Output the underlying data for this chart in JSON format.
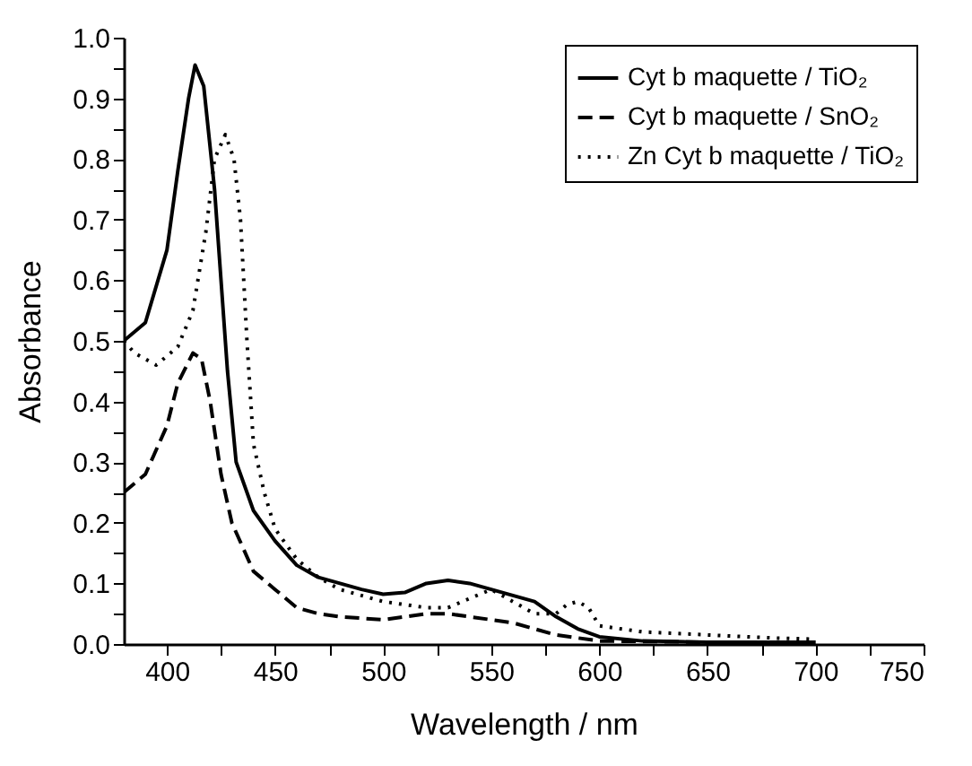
{
  "chart_data": {
    "type": "line",
    "xlabel": "Wavelength / nm",
    "ylabel": "Absorbance",
    "xlim": [
      380,
      750
    ],
    "ylim": [
      0,
      1
    ],
    "xticks": [
      400,
      {
        "value": 425,
        "label": null
      },
      450,
      {
        "value": 475,
        "label": null
      },
      500,
      {
        "value": 525,
        "label": null
      },
      550,
      {
        "value": 575,
        "label": null
      },
      600,
      {
        "value": 625,
        "label": null
      },
      650,
      {
        "value": 675,
        "label": null
      },
      700,
      {
        "value": 725,
        "label": null
      },
      750
    ],
    "yticks": [
      {
        "value": 0,
        "label": "0.0"
      },
      {
        "value": 0.05,
        "label": null
      },
      0.1,
      {
        "value": 0.15,
        "label": null
      },
      0.2,
      {
        "value": 0.25,
        "label": null
      },
      0.3,
      {
        "value": 0.35,
        "label": null
      },
      0.4,
      {
        "value": 0.45,
        "label": null
      },
      0.5,
      {
        "value": 0.55,
        "label": null
      },
      0.6,
      {
        "value": 0.65,
        "label": null
      },
      0.7,
      {
        "value": 0.75,
        "label": null
      },
      0.8,
      {
        "value": 0.85,
        "label": null
      },
      0.9,
      {
        "value": 0.95,
        "label": null
      },
      {
        "value": 1,
        "label": "1.0"
      }
    ],
    "grid": false,
    "legend": "top right",
    "marker": "none",
    "series": [
      {
        "name": "Cyt b maquette / TiO₂",
        "color": "#000000",
        "line_style": "solid",
        "x": [
          380,
          390,
          400,
          405,
          410,
          413,
          417,
          422,
          428,
          432,
          440,
          450,
          460,
          470,
          480,
          490,
          500,
          510,
          520,
          530,
          540,
          550,
          560,
          570,
          580,
          590,
          600,
          620,
          650,
          700
        ],
        "values": [
          0.5,
          0.53,
          0.65,
          0.78,
          0.9,
          0.955,
          0.92,
          0.75,
          0.45,
          0.3,
          0.22,
          0.17,
          0.13,
          0.11,
          0.1,
          0.09,
          0.082,
          0.085,
          0.1,
          0.105,
          0.1,
          0.09,
          0.08,
          0.07,
          0.045,
          0.025,
          0.012,
          0.005,
          0.003,
          0.003
        ]
      },
      {
        "name": "Cyt b maquette / SnO₂",
        "color": "#000000",
        "line_style": "dashed",
        "x": [
          380,
          390,
          400,
          405,
          412,
          416,
          420,
          425,
          430,
          440,
          450,
          460,
          470,
          480,
          500,
          510,
          520,
          530,
          540,
          550,
          560,
          570,
          580,
          600,
          650,
          700
        ],
        "values": [
          0.25,
          0.28,
          0.36,
          0.43,
          0.48,
          0.47,
          0.4,
          0.28,
          0.2,
          0.12,
          0.09,
          0.06,
          0.05,
          0.045,
          0.04,
          0.045,
          0.05,
          0.05,
          0.045,
          0.04,
          0.035,
          0.025,
          0.015,
          0.005,
          0.003,
          0.003
        ]
      },
      {
        "name": "Zn Cyt b maquette / TiO₂",
        "color": "#000000",
        "line_style": "dotted",
        "x": [
          380,
          385,
          395,
          405,
          412,
          418,
          422,
          427,
          431,
          434,
          437,
          440,
          445,
          450,
          460,
          470,
          480,
          500,
          520,
          530,
          540,
          550,
          560,
          570,
          580,
          585,
          590,
          595,
          600,
          620,
          650,
          680,
          700
        ],
        "values": [
          0.5,
          0.48,
          0.46,
          0.49,
          0.55,
          0.68,
          0.8,
          0.84,
          0.8,
          0.7,
          0.5,
          0.33,
          0.25,
          0.19,
          0.14,
          0.11,
          0.09,
          0.07,
          0.06,
          0.06,
          0.075,
          0.09,
          0.07,
          0.05,
          0.05,
          0.065,
          0.07,
          0.06,
          0.03,
          0.02,
          0.015,
          0.01,
          0.008
        ]
      }
    ]
  }
}
